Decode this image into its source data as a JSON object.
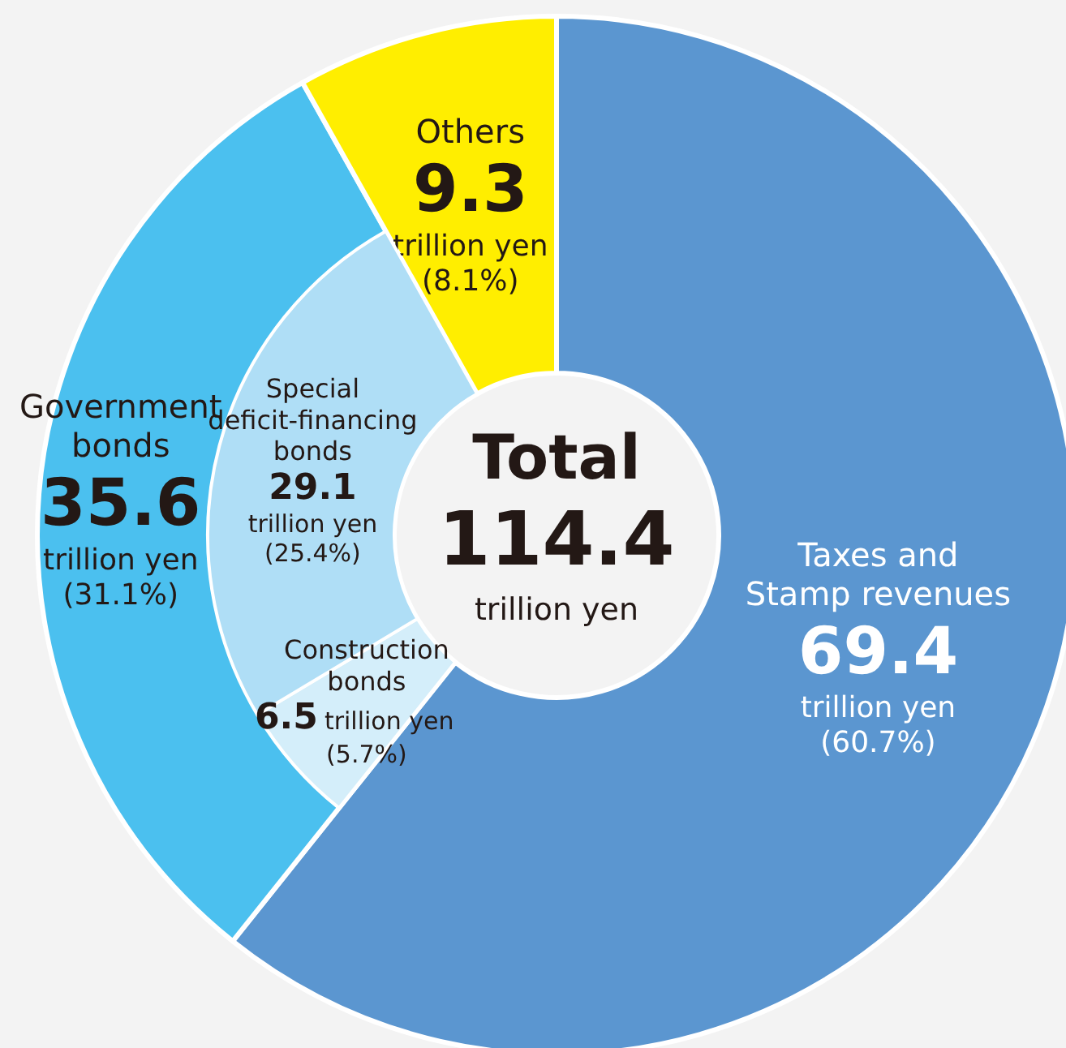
{
  "chart_data": [
    {
      "type": "donut",
      "annotations": [
        "Total",
        "114.4",
        "trillion yen"
      ],
      "categories": [
        "Taxes and\nStamp revenues",
        "Government\nbonds",
        "Others"
      ],
      "values": [
        69.4,
        35.6,
        9.3
      ],
      "colors": [
        "#5b96d0",
        "#4bc0ef",
        "#ffee00"
      ],
      "value_labels": [
        "69.4\ntrillion yen\n(60.7%)",
        "35.6\ntrillion yen\n(31.1%)",
        "9.3\ntrillion yen\n(8.1%)"
      ]
    },
    {
      "type": "donut",
      "categories": [
        "Construction\nbonds",
        "Special\ndeficit-financing\nbonds"
      ],
      "values": [
        6.5,
        29.1
      ],
      "colors": [
        "#d4eefa",
        "#afdef6"
      ],
      "value_labels": [
        "6.5 trillion yen\n(5.7%)",
        "29.1\ntrillion yen\n(25.4%)"
      ]
    }
  ]
}
